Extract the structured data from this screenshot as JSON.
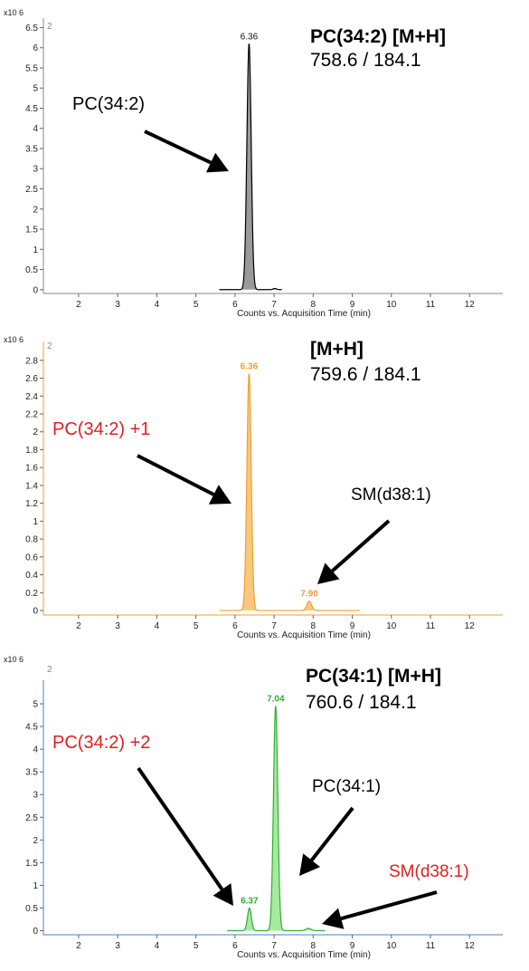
{
  "chart_data": [
    {
      "type": "line",
      "y_multiplier": "x10 6",
      "trace_id": "2",
      "xlabel": "Counts vs. Acquisition Time (min)",
      "xlim": [
        1.1,
        12.85
      ],
      "ylim": [
        -0.05,
        6.6
      ],
      "x_ticks": [
        2,
        3,
        4,
        5,
        6,
        7,
        8,
        9,
        10,
        11,
        12
      ],
      "y_ticks": [
        0,
        0.5,
        1,
        1.5,
        2,
        2.5,
        3,
        3.5,
        4,
        4.5,
        5,
        5.5,
        6,
        6.5
      ],
      "y_tick_labels": [
        "0",
        "0.5",
        "1",
        "1.5",
        "2",
        "2.5",
        "3",
        "3.5",
        "4",
        "4.5",
        "5",
        "5.5",
        "6",
        "6.5"
      ],
      "color": "#000000",
      "fill": "#9a9a9a",
      "axis_color": "#888888",
      "baseline_range": [
        5.6,
        7.2
      ],
      "peaks": [
        {
          "x": 6.36,
          "y": 6.1,
          "sigma": 0.055,
          "label": "6.36"
        },
        {
          "x": 7.02,
          "y": 0.03,
          "sigma": 0.04,
          "label": ""
        }
      ],
      "title_bold": "PC(34:2) [M+H]",
      "title_mz": "758.6 / 184.1",
      "annotations": [
        {
          "text": "PC(34:2)",
          "color": "#000000"
        }
      ]
    },
    {
      "type": "line",
      "y_multiplier": "x10 6",
      "trace_id": "2",
      "xlabel": "Counts vs. Acquisition Time (min)",
      "xlim": [
        1.1,
        12.85
      ],
      "ylim": [
        -0.03,
        2.95
      ],
      "x_ticks": [
        2,
        3,
        4,
        5,
        6,
        7,
        8,
        9,
        10,
        11,
        12
      ],
      "y_ticks": [
        0,
        0.2,
        0.4,
        0.6,
        0.8,
        1,
        1.2,
        1.4,
        1.6,
        1.8,
        2,
        2.2,
        2.4,
        2.6,
        2.8
      ],
      "y_tick_labels": [
        "0",
        "0.2",
        "0.4",
        "0.6",
        "0.8",
        "1",
        "1.2",
        "1.4",
        "1.6",
        "1.8",
        "2",
        "2.2",
        "2.4",
        "2.6",
        "2.8"
      ],
      "color": "#f0a030",
      "fill": "#f8c880",
      "axis_color": "#f0a030",
      "baseline_range": [
        5.6,
        9.2
      ],
      "peaks": [
        {
          "x": 6.36,
          "y": 2.65,
          "sigma": 0.055,
          "label": "6.36"
        },
        {
          "x": 7.9,
          "y": 0.105,
          "sigma": 0.06,
          "label": "7.90"
        }
      ],
      "title_bold": "[M+H]",
      "title_mz": "759.6 / 184.1",
      "annotations": [
        {
          "text": "PC(34:2) +1",
          "color": "#e02020"
        },
        {
          "text": "SM(d38:1)",
          "color": "#000000"
        }
      ]
    },
    {
      "type": "line",
      "y_multiplier": "x10 6",
      "trace_id": "2",
      "xlabel": "Counts vs. Acquisition Time (min)",
      "xlim": [
        1.1,
        12.85
      ],
      "ylim": [
        -0.05,
        5.4
      ],
      "x_ticks": [
        2,
        3,
        4,
        5,
        6,
        7,
        8,
        9,
        10,
        11,
        12
      ],
      "y_ticks": [
        0,
        0.5,
        1,
        1.5,
        2,
        2.5,
        3,
        3.5,
        4,
        4.5,
        5
      ],
      "y_tick_labels": [
        "0",
        "0.5",
        "1",
        "1.5",
        "2",
        "2.5",
        "3",
        "3.5",
        "4",
        "4.5",
        "5"
      ],
      "color": "#30b030",
      "fill": "#a8e8a0",
      "axis_color": "#4a80c0",
      "baseline_range": [
        5.8,
        8.3
      ],
      "peaks": [
        {
          "x": 6.37,
          "y": 0.5,
          "sigma": 0.05,
          "label": "6.37"
        },
        {
          "x": 7.04,
          "y": 4.95,
          "sigma": 0.055,
          "label": "7.04"
        },
        {
          "x": 7.88,
          "y": 0.05,
          "sigma": 0.07,
          "label": ""
        }
      ],
      "title_bold": "PC(34:1) [M+H]",
      "title_mz": "760.6 / 184.1",
      "annotations": [
        {
          "text": "PC(34:2) +2",
          "color": "#e02020"
        },
        {
          "text": "PC(34:1)",
          "color": "#000000"
        },
        {
          "text": "SM(d38:1)",
          "color": "#e02020"
        }
      ]
    }
  ]
}
